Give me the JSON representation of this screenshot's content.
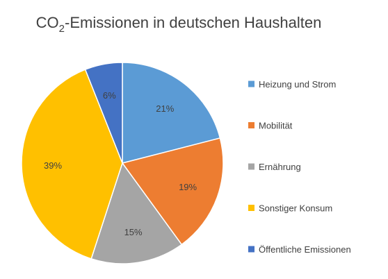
{
  "chart_data": {
    "type": "pie",
    "title": {
      "prefix": "CO",
      "subscript": "2",
      "suffix": "-Emissionen in deutschen Haushalten"
    },
    "categories": [
      "Heizung und Strom",
      "Mobilität",
      "Ernährung",
      "Sonstiger Konsum",
      "Öffentliche Emissionen"
    ],
    "values": [
      21,
      19,
      15,
      39,
      6
    ],
    "labels": [
      "21%",
      "19%",
      "15%",
      "39%",
      "6%"
    ],
    "colors": [
      "#5B9BD5",
      "#ED7D31",
      "#A5A5A5",
      "#FFC000",
      "#4472C4"
    ],
    "legend": "right",
    "start_angle": "12 o'clock",
    "direction": "clockwise"
  }
}
